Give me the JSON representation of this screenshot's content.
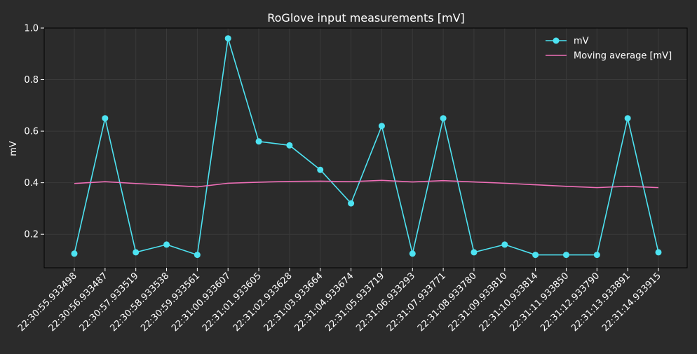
{
  "chart_data": {
    "type": "line",
    "title": "RoGlove input measurements [mV]",
    "xlabel": "",
    "ylabel": "mV",
    "ylim": [
      0.07,
      1.0
    ],
    "yticks": [
      "0.2",
      "0.4",
      "0.6",
      "0.8",
      "1.0"
    ],
    "ytick_values": [
      0.2,
      0.4,
      0.6,
      0.8,
      1.0
    ],
    "grid": true,
    "legend_position": "top-right",
    "categories": [
      "22:30:55.933498",
      "22:30:56.933487",
      "22:30:57.933519",
      "22:30:58.933538",
      "22:30:59.933561",
      "22:31:00.933607",
      "22:31:01.933605",
      "22:31:02.933628",
      "22:31:03.933664",
      "22:31:04.933674",
      "22:31:05.933719",
      "22:31:06.933293",
      "22:31:07.933771",
      "22:31:08.933780",
      "22:31:09.933810",
      "22:31:10.933814",
      "22:31:11.933850",
      "22:31:12.933790",
      "22:31:13.933891",
      "22:31:14.933915"
    ],
    "series": [
      {
        "name": "mV",
        "color": "#4de3f2",
        "marker": "circle",
        "values": [
          0.125,
          0.65,
          0.13,
          0.16,
          0.12,
          0.96,
          0.56,
          0.545,
          0.45,
          0.32,
          0.62,
          0.125,
          0.65,
          0.13,
          0.16,
          0.12,
          0.12,
          0.12,
          0.65,
          0.13
        ]
      },
      {
        "name": "Moving average [mV]",
        "color": "#f06fb8",
        "marker": "none",
        "values": [
          0.397,
          0.404,
          0.397,
          0.391,
          0.384,
          0.398,
          0.402,
          0.405,
          0.406,
          0.404,
          0.409,
          0.403,
          0.408,
          0.403,
          0.398,
          0.392,
          0.386,
          0.381,
          0.386,
          0.381
        ]
      }
    ]
  },
  "colors": {
    "background": "#2b2b2b",
    "plot_background": "#2b2b2b",
    "axis": "#000000",
    "grid": "#3a3a3a",
    "text": "#ffffff"
  }
}
